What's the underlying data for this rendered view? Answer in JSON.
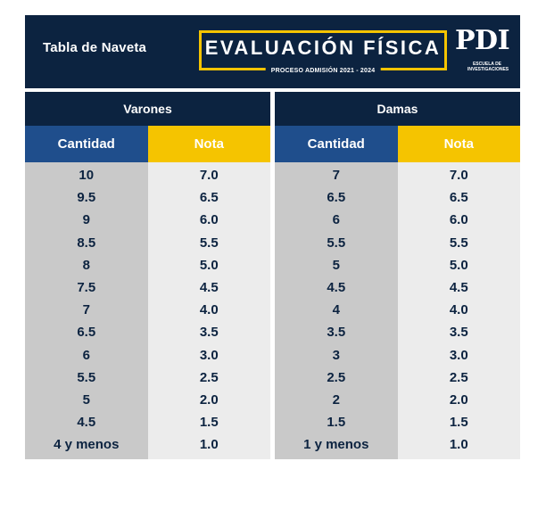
{
  "header": {
    "title": "Tabla de Naveta",
    "evaluation_title": "EVALUACIÓN FÍSICA",
    "evaluation_subtitle": "PROCESO ADMISIÓN 2021 - 2024",
    "logo_text": "PDI",
    "logo_subtitle": "ESCUELA DE INVESTIGACIONES"
  },
  "colors": {
    "navy": "#0c2340",
    "blue": "#1f4e8c",
    "yellow": "#f5c400",
    "gray_dark": "#c9c9c9",
    "gray_light": "#ececec"
  },
  "tables": [
    {
      "group": "Varones",
      "col_qty": "Cantidad",
      "col_grade": "Nota",
      "rows": [
        [
          "10",
          "7.0"
        ],
        [
          "9.5",
          "6.5"
        ],
        [
          "9",
          "6.0"
        ],
        [
          "8.5",
          "5.5"
        ],
        [
          "8",
          "5.0"
        ],
        [
          "7.5",
          "4.5"
        ],
        [
          "7",
          "4.0"
        ],
        [
          "6.5",
          "3.5"
        ],
        [
          "6",
          "3.0"
        ],
        [
          "5.5",
          "2.5"
        ],
        [
          "5",
          "2.0"
        ],
        [
          "4.5",
          "1.5"
        ],
        [
          "4 y menos",
          "1.0"
        ]
      ]
    },
    {
      "group": "Damas",
      "col_qty": "Cantidad",
      "col_grade": "Nota",
      "rows": [
        [
          "7",
          "7.0"
        ],
        [
          "6.5",
          "6.5"
        ],
        [
          "6",
          "6.0"
        ],
        [
          "5.5",
          "5.5"
        ],
        [
          "5",
          "5.0"
        ],
        [
          "4.5",
          "4.5"
        ],
        [
          "4",
          "4.0"
        ],
        [
          "3.5",
          "3.5"
        ],
        [
          "3",
          "3.0"
        ],
        [
          "2.5",
          "2.5"
        ],
        [
          "2",
          "2.0"
        ],
        [
          "1.5",
          "1.5"
        ],
        [
          "1 y menos",
          "1.0"
        ]
      ]
    }
  ]
}
